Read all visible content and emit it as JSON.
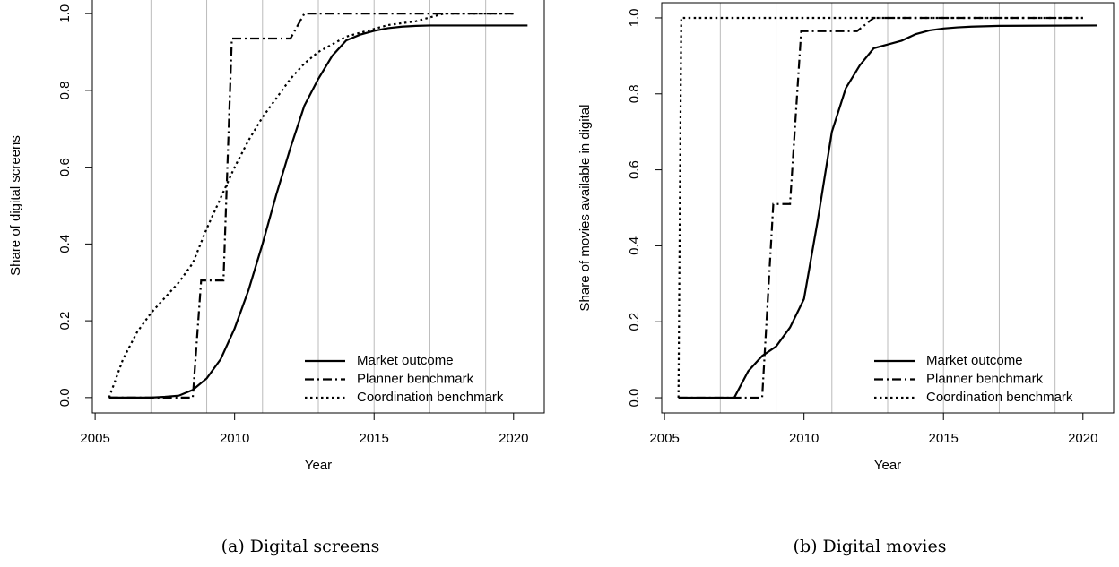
{
  "chart_data": [
    {
      "type": "line",
      "caption": "(a) Digital screens",
      "xlabel": "Year",
      "ylabel": "Share of digital screens",
      "xlim": [
        2004.9,
        2021.1
      ],
      "ylim": [
        -0.04,
        1.04
      ],
      "xticks": [
        2005,
        2010,
        2015,
        2020
      ],
      "yticks": [
        {
          "value": 0,
          "label": "0.0"
        },
        0.2,
        0.4,
        0.6,
        0.8,
        {
          "value": 1,
          "label": "1.0"
        }
      ],
      "xgrid": [
        2007,
        2009,
        2011,
        2013,
        2015,
        2017,
        2019
      ],
      "legend": "bottom-right",
      "series": [
        {
          "name": "Market outcome",
          "color": "#000000",
          "dash": "solid",
          "x": [
            2005.5,
            2006,
            2006.5,
            2007,
            2007.5,
            2008,
            2008.5,
            2009,
            2009.5,
            2010,
            2010.5,
            2011,
            2011.5,
            2012,
            2012.5,
            2013,
            2013.5,
            2014,
            2014.5,
            2015,
            2015.5,
            2016,
            2016.5,
            2017,
            2020.5
          ],
          "values": [
            0,
            0,
            0,
            0,
            0.002,
            0.005,
            0.02,
            0.05,
            0.1,
            0.18,
            0.28,
            0.4,
            0.53,
            0.65,
            0.76,
            0.83,
            0.89,
            0.93,
            0.945,
            0.955,
            0.962,
            0.966,
            0.968,
            0.969,
            0.969
          ]
        },
        {
          "name": "Planner benchmark",
          "color": "#000000",
          "dash": "dashdot",
          "x": [
            2005.5,
            2008.5,
            2008.8,
            2009.6,
            2009.9,
            2012,
            2012.5,
            2020
          ],
          "values": [
            0,
            0,
            0.305,
            0.305,
            0.935,
            0.935,
            1,
            1
          ]
        },
        {
          "name": "Coordination benchmark",
          "color": "#000000",
          "dash": "dotted",
          "x": [
            2005.5,
            2006,
            2006.5,
            2007,
            2007.5,
            2008,
            2008.5,
            2009,
            2009.5,
            2010,
            2010.5,
            2011,
            2011.5,
            2012,
            2012.5,
            2013,
            2013.5,
            2014,
            2014.5,
            2015,
            2015.5,
            2016,
            2016.5,
            2017,
            2017.5,
            2020
          ],
          "values": [
            0,
            0.1,
            0.17,
            0.22,
            0.26,
            0.3,
            0.35,
            0.44,
            0.52,
            0.6,
            0.67,
            0.73,
            0.78,
            0.83,
            0.87,
            0.9,
            0.92,
            0.94,
            0.95,
            0.96,
            0.97,
            0.975,
            0.98,
            0.99,
            1,
            1
          ]
        }
      ]
    },
    {
      "type": "line",
      "caption": "(b) Digital movies",
      "xlabel": "Year",
      "ylabel": "Share of movies available in digital",
      "xlim": [
        2004.9,
        2021.1
      ],
      "ylim": [
        -0.04,
        1.04
      ],
      "xticks": [
        2005,
        2010,
        2015,
        2020
      ],
      "yticks": [
        {
          "value": 0,
          "label": "0.0"
        },
        0.2,
        0.4,
        0.6,
        0.8,
        {
          "value": 1,
          "label": "1.0"
        }
      ],
      "xgrid": [
        2007,
        2009,
        2011,
        2013,
        2015,
        2017,
        2019
      ],
      "legend": "bottom-right",
      "series": [
        {
          "name": "Market outcome",
          "color": "#000000",
          "dash": "solid",
          "x": [
            2005.5,
            2007.5,
            2008,
            2008.5,
            2009,
            2009.5,
            2010,
            2010.5,
            2011,
            2011.5,
            2012,
            2012.5,
            2013,
            2013.5,
            2014,
            2014.5,
            2015,
            2015.5,
            2016,
            2017,
            2020.5
          ],
          "values": [
            0,
            0,
            0.07,
            0.11,
            0.135,
            0.185,
            0.26,
            0.47,
            0.7,
            0.815,
            0.875,
            0.92,
            0.93,
            0.94,
            0.957,
            0.967,
            0.972,
            0.975,
            0.977,
            0.979,
            0.98
          ]
        },
        {
          "name": "Planner benchmark",
          "color": "#000000",
          "dash": "dashdot",
          "x": [
            2005.5,
            2008.5,
            2008.9,
            2009.5,
            2009.9,
            2011.9,
            2012.5,
            2020
          ],
          "values": [
            0,
            0,
            0.51,
            0.51,
            0.965,
            0.965,
            1,
            1
          ]
        },
        {
          "name": "Coordination benchmark",
          "color": "#000000",
          "dash": "dotted",
          "x": [
            2005.5,
            2005.6,
            2020
          ],
          "values": [
            0,
            1,
            1
          ]
        }
      ]
    }
  ]
}
